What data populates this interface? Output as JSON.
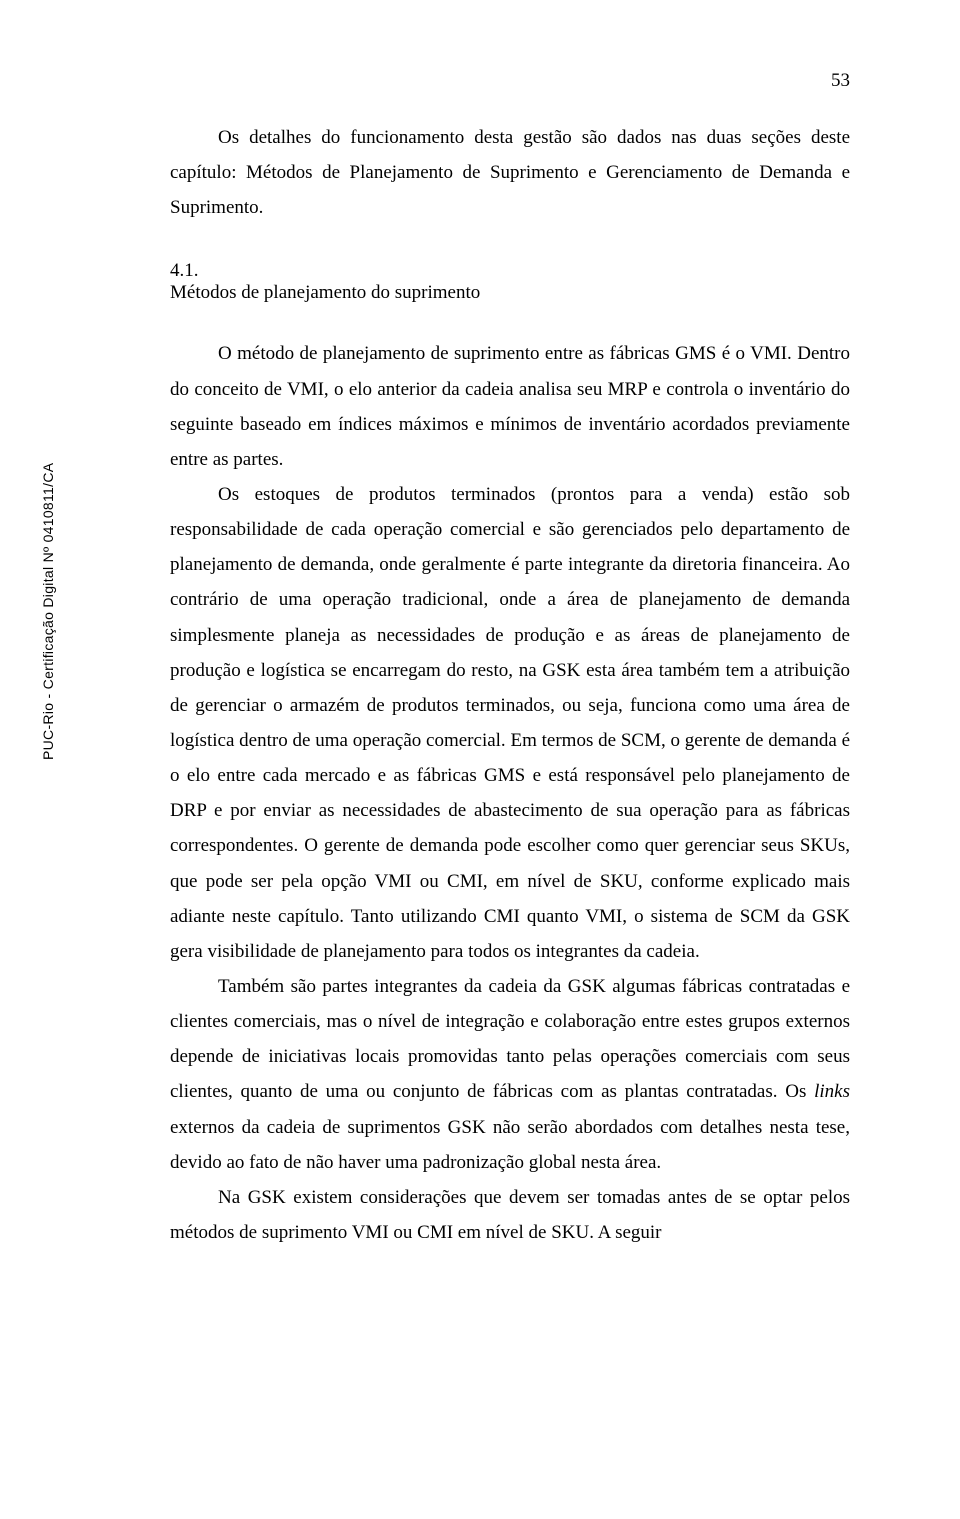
{
  "page_number": "53",
  "intro_paragraph": "Os detalhes do funcionamento desta gestão são dados nas duas seções deste capítulo: Métodos de Planejamento de Suprimento e Gerenciamento de Demanda e Suprimento.",
  "section": {
    "number": "4.1.",
    "title": "Métodos de planejamento do suprimento"
  },
  "body_paragraphs": {
    "p1": "O método de planejamento de suprimento entre as fábricas GMS é o VMI. Dentro do conceito de VMI, o elo anterior da cadeia analisa seu MRP e controla o inventário do seguinte baseado em índices máximos e mínimos de inventário acordados previamente entre as partes.",
    "p2_part1": "Os estoques de produtos terminados (prontos para a venda) estão sob responsabilidade de cada operação comercial e são gerenciados pelo departamento de planejamento de demanda, onde geralmente é parte integrante da diretoria financeira. Ao contrário de uma operação tradicional, onde a área de planejamento de demanda simplesmente planeja as necessidades de produção e as áreas de planejamento de produção e logística se encarregam do resto, na GSK esta área também tem a atribuição de gerenciar o armazém de produtos terminados, ou seja, funciona como uma área de logística dentro de uma operação comercial. Em termos de SCM, o gerente de demanda é o elo entre cada mercado e as fábricas GMS e está responsável pelo planejamento de DRP e por enviar as necessidades de abastecimento de sua operação para as fábricas correspondentes. O gerente de demanda pode escolher como quer gerenciar seus SKUs, que pode ser pela opção VMI ou CMI, em nível de SKU, conforme explicado mais adiante neste capítulo. Tanto utilizando CMI quanto VMI, o sistema de SCM da GSK gera visibilidade de planejamento para todos os integrantes da cadeia.",
    "p3_part1": "Também são partes integrantes da cadeia da GSK algumas fábricas contratadas e clientes comerciais, mas o nível de integração e colaboração entre estes grupos externos depende de iniciativas locais promovidas tanto pelas operações comerciais com seus clientes, quanto de uma ou conjunto de fábricas com as plantas contratadas. Os ",
    "p3_italic": "links",
    "p3_part2": " externos da cadeia de suprimentos GSK não serão abordados com detalhes nesta tese, devido ao fato de não haver uma padronização global nesta área.",
    "p4": "Na GSK existem considerações que devem ser tomadas antes de se optar pelos métodos de suprimento VMI ou CMI em nível de SKU. A seguir"
  },
  "vertical_label": "PUC-Rio - Certificação Digital Nº 0410811/CA"
}
